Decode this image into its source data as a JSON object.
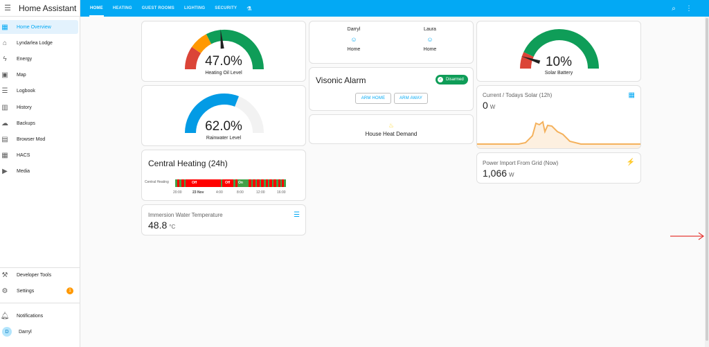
{
  "app": {
    "title": "Home Assistant"
  },
  "sidebar": {
    "items": [
      {
        "label": "Home Overview",
        "icon": "view-dashboard-icon",
        "glyph": "▦",
        "active": true
      },
      {
        "label": "Lyndarlea Lodge",
        "icon": "home-icon",
        "glyph": "⌂"
      },
      {
        "label": "Energy",
        "icon": "lightning-icon",
        "glyph": "ϟ"
      },
      {
        "label": "Map",
        "icon": "account-box-icon",
        "glyph": "▣"
      },
      {
        "label": "Logbook",
        "icon": "format-list-icon",
        "glyph": "☰"
      },
      {
        "label": "History",
        "icon": "chart-box-icon",
        "glyph": "▥"
      },
      {
        "label": "Backups",
        "icon": "cloud-icon",
        "glyph": "☁"
      },
      {
        "label": "Browser Mod",
        "icon": "server-icon",
        "glyph": "▤"
      },
      {
        "label": "HACS",
        "icon": "hacs-icon",
        "glyph": "▦"
      },
      {
        "label": "Media",
        "icon": "play-box-icon",
        "glyph": "▶"
      }
    ],
    "bottom": {
      "developer_tools": "Developer Tools",
      "settings": "Settings",
      "settings_badge": "1",
      "notifications": "Notifications",
      "user": "Darryl",
      "user_initial": "D"
    }
  },
  "topbar": {
    "tabs": [
      "HOME",
      "HEATING",
      "GUEST ROOMS",
      "LIGHTING",
      "SECURITY"
    ]
  },
  "cards": {
    "heating_oil": {
      "value": "47.0%",
      "name": "Heating Oil Level",
      "level": 0.47
    },
    "rainwater": {
      "value": "62.0%",
      "name": "Rainwater Level",
      "level": 0.62
    },
    "central_heating": {
      "title": "Central Heating (24h)",
      "entity": "Central Heating",
      "labels": [
        "Off",
        "Off",
        "On"
      ],
      "ticks": [
        "20:00",
        "23 Nov",
        "4:00",
        "8:00",
        "12:00",
        "16:00"
      ]
    },
    "immersion": {
      "name": "Immersion Water Temperature",
      "value": "48.8",
      "unit": "°C"
    },
    "persons": [
      {
        "name": "Darryl",
        "state": "Home"
      },
      {
        "name": "Laura",
        "state": "Home"
      }
    ],
    "alarm": {
      "title": "Visonic Alarm",
      "status": "Disarmed",
      "arm_home": "ARM HOME",
      "arm_away": "ARM AWAY"
    },
    "heat_demand": {
      "name": "House Heat Demand"
    },
    "solar_battery": {
      "value": "10%",
      "name": "Solar Battery",
      "level": 0.1
    },
    "solar": {
      "name": "Current / Todays Solar (12h)",
      "value": "0",
      "unit": "W"
    },
    "grid": {
      "name": "Power Import From Grid (Now)",
      "value": "1,066",
      "unit": "W"
    }
  },
  "colors": {
    "primary": "#03a9f4",
    "gauge_green": "#0f9d58",
    "gauge_orange": "#ff9800",
    "gauge_red": "#db4437",
    "heating_off": "#ff0000",
    "heating_on": "#43a047",
    "solar_line": "#f4b15c",
    "annotation_arrow": "#e53935"
  }
}
